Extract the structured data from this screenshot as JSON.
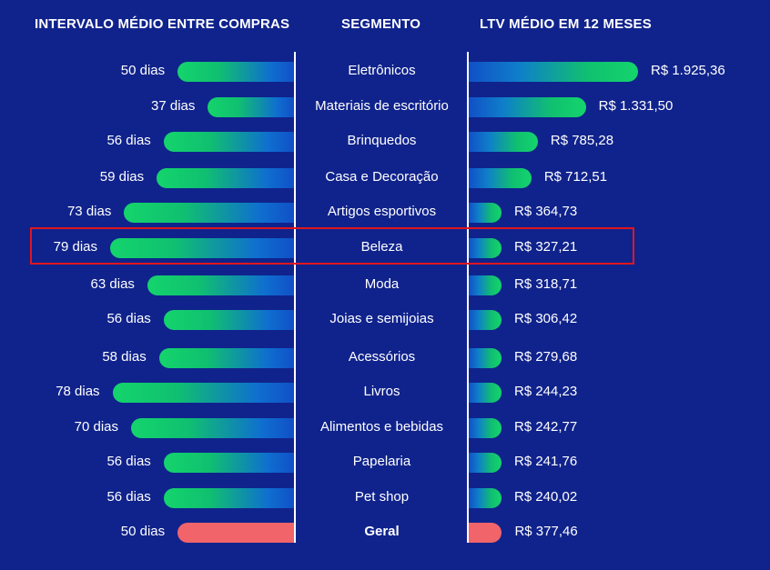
{
  "chart_data": {
    "type": "bar",
    "headers": {
      "left": "INTERVALO MÉDIO ENTRE COMPRAS",
      "middle": "SEGMENTO",
      "right": "LTV MÉDIO EM 12 MESES"
    },
    "categories": [
      "Eletrônicos",
      "Materiais de escritório",
      "Brinquedos",
      "Casa e Decoração",
      "Artigos esportivos",
      "Beleza",
      "Moda",
      "Joias e semijoias",
      "Acessórios",
      "Livros",
      "Alimentos e bebidas",
      "Papelaria",
      "Pet shop",
      "Geral"
    ],
    "series": [
      {
        "name": "INTERVALO MÉDIO ENTRE COMPRAS",
        "values": [
          50,
          37,
          56,
          59,
          73,
          79,
          63,
          56,
          58,
          78,
          70,
          56,
          56,
          50
        ],
        "labels": [
          "50 dias",
          "37 dias",
          "56 dias",
          "59 dias",
          "73 dias",
          "79 dias",
          "63 dias",
          "56 dias",
          "58 dias",
          "78 dias",
          "70 dias",
          "56 dias",
          "56 dias",
          "50 dias"
        ]
      },
      {
        "name": "LTV MÉDIO EM 12 MESES",
        "values": [
          1925.36,
          1331.5,
          785.28,
          712.51,
          364.73,
          327.21,
          318.71,
          306.42,
          279.68,
          244.23,
          242.77,
          241.76,
          240.02,
          377.46
        ],
        "labels": [
          "R$ 1.925,36",
          "R$ 1.331,50",
          "R$ 785,28",
          "R$ 712,51",
          "R$ 364,73",
          "R$ 327,21",
          "R$ 318,71",
          "R$ 306,42",
          "R$ 279,68",
          "R$ 244,23",
          "R$ 242,77",
          "R$ 241,76",
          "R$ 240,02",
          "R$ 377,46"
        ]
      }
    ],
    "highlighted_category": "Beleza",
    "colors": {
      "background": "#10238c",
      "bar_green": "#14d46c",
      "bar_blue": "#1050c8",
      "total_bar": "#f0646a",
      "highlight_border": "#e0161e"
    }
  }
}
